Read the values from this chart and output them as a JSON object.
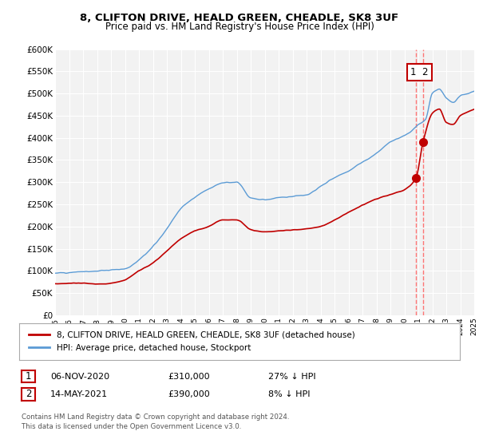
{
  "title": "8, CLIFTON DRIVE, HEALD GREEN, CHEADLE, SK8 3UF",
  "subtitle": "Price paid vs. HM Land Registry's House Price Index (HPI)",
  "ylabel_ticks": [
    "£0",
    "£50K",
    "£100K",
    "£150K",
    "£200K",
    "£250K",
    "£300K",
    "£350K",
    "£400K",
    "£450K",
    "£500K",
    "£550K",
    "£600K"
  ],
  "ytick_values": [
    0,
    50000,
    100000,
    150000,
    200000,
    250000,
    300000,
    350000,
    400000,
    450000,
    500000,
    550000,
    600000
  ],
  "hpi_color": "#5B9BD5",
  "price_color": "#C00000",
  "dashed_color": "#FF6666",
  "annotation_box_color": "#C00000",
  "background_color": "#F2F2F2",
  "grid_color": "#FFFFFF",
  "legend_label_red": "8, CLIFTON DRIVE, HEALD GREEN, CHEADLE, SK8 3UF (detached house)",
  "legend_label_blue": "HPI: Average price, detached house, Stockport",
  "sale1_label": "1",
  "sale1_date": "06-NOV-2020",
  "sale1_price": "£310,000",
  "sale1_hpi": "27% ↓ HPI",
  "sale2_label": "2",
  "sale2_date": "14-MAY-2021",
  "sale2_price": "£390,000",
  "sale2_hpi": "8% ↓ HPI",
  "footer": "Contains HM Land Registry data © Crown copyright and database right 2024.\nThis data is licensed under the Open Government Licence v3.0.",
  "xmin": 1995,
  "xmax": 2025,
  "ymin": 0,
  "ymax": 600000,
  "sale1_year": 2020.833,
  "sale1_price_val": 310000,
  "sale2_year": 2021.333,
  "sale2_price_val": 390000
}
